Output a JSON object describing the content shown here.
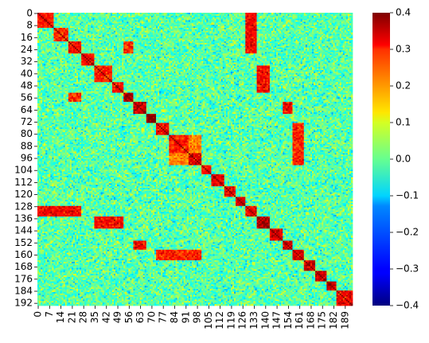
{
  "chart_data": {
    "type": "heatmap",
    "title": "",
    "xlabel": "",
    "ylabel": "",
    "size": 194,
    "colormap": "jet",
    "vmin": -0.4,
    "vmax": 0.4,
    "x_tick_labels": [
      "0",
      "7",
      "14",
      "21",
      "28",
      "35",
      "42",
      "49",
      "56",
      "63",
      "70",
      "77",
      "84",
      "91",
      "98",
      "105",
      "112",
      "119",
      "126",
      "133",
      "140",
      "147",
      "154",
      "161",
      "168",
      "175",
      "182",
      "189"
    ],
    "x_tick_step": 7,
    "y_tick_labels": [
      "0",
      "8",
      "16",
      "24",
      "32",
      "40",
      "48",
      "56",
      "64",
      "72",
      "80",
      "88",
      "96",
      "104",
      "112",
      "120",
      "128",
      "136",
      "144",
      "152",
      "160",
      "168",
      "176",
      "184",
      "192"
    ],
    "y_tick_step": 8,
    "colorbar_ticks": [
      "0.4",
      "0.3",
      "0.2",
      "0.1",
      "0.0",
      "−0.1",
      "−0.2",
      "−0.3",
      "−0.4"
    ],
    "colorbar_tick_values": [
      0.4,
      0.3,
      0.2,
      0.1,
      0.0,
      -0.1,
      -0.2,
      -0.3,
      -0.4
    ],
    "background_level": -0.03,
    "diagonal_value": 0.4,
    "blocks": [
      {
        "range": [
          0,
          9
        ],
        "value": 0.28
      },
      {
        "range": [
          10,
          18
        ],
        "value": 0.26
      },
      {
        "range": [
          19,
          26
        ],
        "value": 0.3
      },
      {
        "range": [
          27,
          34
        ],
        "value": 0.3
      },
      {
        "range": [
          35,
          45
        ],
        "value": 0.27
      },
      {
        "range": [
          46,
          52
        ],
        "value": 0.3
      },
      {
        "range": [
          53,
          58
        ],
        "value": 0.38
      },
      {
        "range": [
          59,
          66
        ],
        "value": 0.34
      },
      {
        "range": [
          67,
          72
        ],
        "value": 0.4
      },
      {
        "range": [
          73,
          80
        ],
        "value": 0.3
      },
      {
        "range": [
          81,
          92
        ],
        "value": 0.28
      },
      {
        "range": [
          93,
          100
        ],
        "value": 0.32
      },
      {
        "range": [
          101,
          106
        ],
        "value": 0.3
      },
      {
        "range": [
          107,
          114
        ],
        "value": 0.32
      },
      {
        "range": [
          115,
          121
        ],
        "value": 0.3
      },
      {
        "range": [
          122,
          127
        ],
        "value": 0.34
      },
      {
        "range": [
          128,
          134
        ],
        "value": 0.32
      },
      {
        "range": [
          135,
          142
        ],
        "value": 0.36
      },
      {
        "range": [
          143,
          150
        ],
        "value": 0.32
      },
      {
        "range": [
          151,
          156
        ],
        "value": 0.34
      },
      {
        "range": [
          157,
          163
        ],
        "value": 0.33
      },
      {
        "range": [
          164,
          170
        ],
        "value": 0.35
      },
      {
        "range": [
          171,
          177
        ],
        "value": 0.33
      },
      {
        "range": [
          178,
          183
        ],
        "value": 0.34
      },
      {
        "range": [
          184,
          193
        ],
        "value": 0.3
      }
    ],
    "off_diagonal_links": [
      {
        "rows": [
          0,
          26
        ],
        "cols": [
          128,
          134
        ],
        "value": 0.3
      },
      {
        "rows": [
          35,
          52
        ],
        "cols": [
          135,
          142
        ],
        "value": 0.3
      },
      {
        "rows": [
          59,
          66
        ],
        "cols": [
          151,
          156
        ],
        "value": 0.3
      },
      {
        "rows": [
          73,
          100
        ],
        "cols": [
          157,
          163
        ],
        "value": 0.28
      },
      {
        "rows": [
          19,
          26
        ],
        "cols": [
          53,
          58
        ],
        "value": 0.26
      },
      {
        "rows": [
          81,
          92
        ],
        "cols": [
          93,
          100
        ],
        "value": 0.2
      }
    ]
  }
}
